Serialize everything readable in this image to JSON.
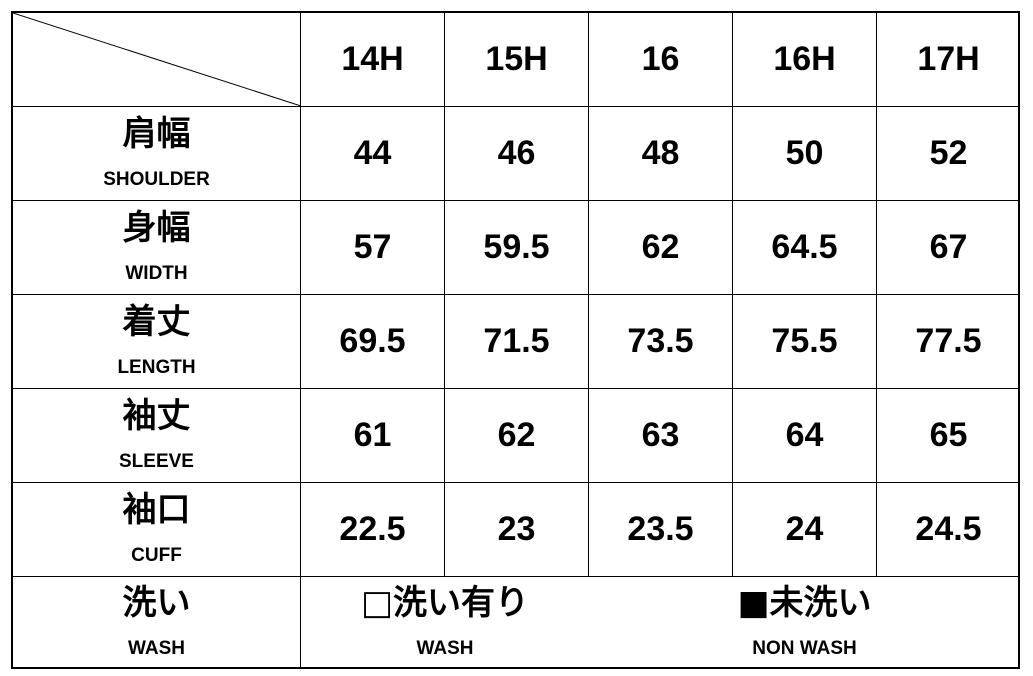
{
  "columns": [
    "14H",
    "15H",
    "16",
    "16H",
    "17H"
  ],
  "rows": [
    {
      "label_jp": "肩幅",
      "label_en": "SHOULDER",
      "values": [
        "44",
        "46",
        "48",
        "50",
        "52"
      ]
    },
    {
      "label_jp": "身幅",
      "label_en": "WIDTH",
      "values": [
        "57",
        "59.5",
        "62",
        "64.5",
        "67"
      ]
    },
    {
      "label_jp": "着丈",
      "label_en": "LENGTH",
      "values": [
        "69.5",
        "71.5",
        "73.5",
        "75.5",
        "77.5"
      ]
    },
    {
      "label_jp": "袖丈",
      "label_en": "SLEEVE",
      "values": [
        "61",
        "62",
        "63",
        "64",
        "65"
      ]
    },
    {
      "label_jp": "袖口",
      "label_en": "CUFF",
      "values": [
        "22.5",
        "23",
        "23.5",
        "24",
        "24.5"
      ]
    }
  ],
  "wash": {
    "label_jp": "洗い",
    "label_en": "WASH",
    "options": [
      {
        "jp": "□洗い有り",
        "en": "WASH",
        "checked": false
      },
      {
        "jp": "■未洗い",
        "en": "NON WASH",
        "checked": true
      }
    ]
  }
}
